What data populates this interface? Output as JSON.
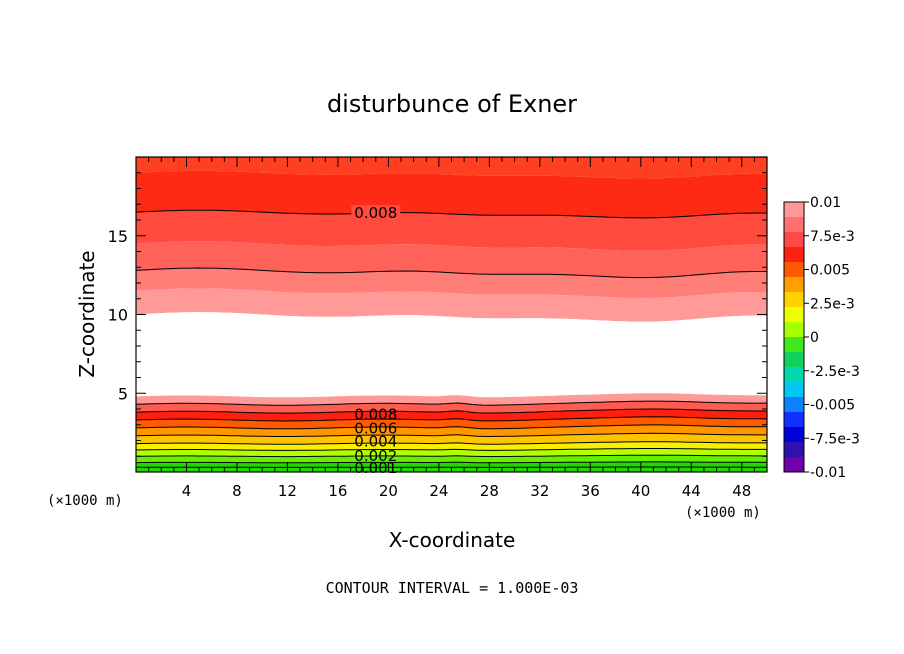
{
  "chart_data": {
    "type": "heatmap",
    "subtype": "filled-contour",
    "title": "disturbunce of Exner",
    "xlabel": "X-coordinate",
    "ylabel": "Z-coordinate",
    "x_unit_left": "(×1000 m)",
    "x_unit_right": "(×1000 m)",
    "xlim": [
      0,
      50
    ],
    "ylim": [
      0,
      20
    ],
    "x_ticks": [
      "4",
      "8",
      "12",
      "16",
      "20",
      "24",
      "28",
      "32",
      "36",
      "40",
      "44",
      "48"
    ],
    "x_tick_values": [
      4,
      8,
      12,
      16,
      20,
      24,
      28,
      32,
      36,
      40,
      44,
      48
    ],
    "y_ticks": [
      "5",
      "10",
      "15"
    ],
    "y_tick_values": [
      5,
      10,
      15
    ],
    "footer": "CONTOUR INTERVAL = 1.000E-03",
    "contour_interval": 0.001,
    "contour_labels": [
      {
        "text": "0.008",
        "x": 19,
        "z": 16.5
      },
      {
        "text": "0.008",
        "x": 19,
        "z": 3.6
      },
      {
        "text": "0.006",
        "x": 19,
        "z": 2.7
      },
      {
        "text": "0.004",
        "x": 19,
        "z": 1.9
      },
      {
        "text": "0.002",
        "x": 19,
        "z": 1.0
      },
      {
        "text": "0.001",
        "x": 19,
        "z": 0.25
      }
    ],
    "colorbar": {
      "labels": [
        "0.01",
        "7.5e-3",
        "0.005",
        "2.5e-3",
        "0",
        "-2.5e-3",
        "-0.005",
        "-7.5e-3",
        "-0.01"
      ],
      "values": [
        0.01,
        0.0075,
        0.005,
        0.0025,
        0,
        -0.0025,
        -0.005,
        -0.0075,
        -0.01
      ],
      "colors": [
        "#ff9898",
        "#ff7070",
        "#ff4848",
        "#ff2010",
        "#ff5a00",
        "#ffa000",
        "#ffd200",
        "#f0ff00",
        "#a8ff00",
        "#40e820",
        "#10d060",
        "#00d8b0",
        "#00c8f0",
        "#1080ff",
        "#1030ff",
        "#0000d8",
        "#3010b0",
        "#7000a8"
      ]
    },
    "bands_top_to_bottom": [
      {
        "zmin": 19.0,
        "zmax": 20.0,
        "color": "#ff4020",
        "label": "8.5e-3"
      },
      {
        "zmin": 16.5,
        "zmax": 19.0,
        "color": "#ff2a14",
        "label": "8e-3 to 8.5e-3"
      },
      {
        "zmin": 14.5,
        "zmax": 16.5,
        "color": "#ff4a3e",
        "label": "7.5e-3 to 8e-3"
      },
      {
        "zmin": 12.8,
        "zmax": 14.5,
        "color": "#ff6258",
        "label": "7e-3 to 7.5e-3"
      },
      {
        "zmin": 11.5,
        "zmax": 12.8,
        "color": "#ff7e78",
        "label": "6.5e-3 to 7e-3"
      },
      {
        "zmin": 10.0,
        "zmax": 11.5,
        "color": "#ff9a98",
        "label": "6e-3 to 6.5e-3"
      },
      {
        "zmin": 4.8,
        "zmax": 10.0,
        "color": "#ffffff",
        "label": "near 0.01 (blank)"
      },
      {
        "zmin": 4.3,
        "zmax": 4.8,
        "color": "#ff9a98",
        "label": "6e-3"
      },
      {
        "zmin": 3.8,
        "zmax": 4.3,
        "color": "#ff5c50",
        "label": "7.5e-3"
      },
      {
        "zmin": 3.3,
        "zmax": 3.8,
        "color": "#ff1e10",
        "label": "8e-3"
      },
      {
        "zmin": 2.8,
        "zmax": 3.3,
        "color": "#ff5a00",
        "label": "7e-3"
      },
      {
        "zmin": 2.3,
        "zmax": 2.8,
        "color": "#ff9600",
        "label": "6e-3"
      },
      {
        "zmin": 1.8,
        "zmax": 2.3,
        "color": "#ffc400",
        "label": "5e-3"
      },
      {
        "zmin": 1.4,
        "zmax": 1.8,
        "color": "#f8f000",
        "label": "4e-3"
      },
      {
        "zmin": 1.0,
        "zmax": 1.4,
        "color": "#b4ff00",
        "label": "3e-3"
      },
      {
        "zmin": 0.6,
        "zmax": 1.0,
        "color": "#66f000",
        "label": "2e-3"
      },
      {
        "zmin": 0.0,
        "zmax": 0.6,
        "color": "#22d800",
        "label": "1e-3"
      }
    ]
  }
}
